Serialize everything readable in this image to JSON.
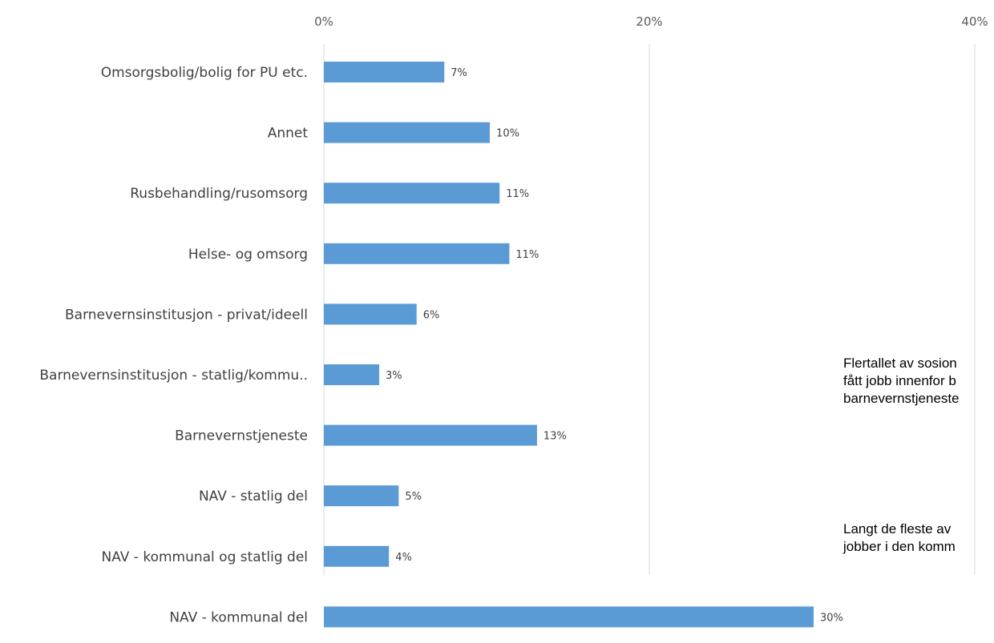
{
  "chart_data": {
    "type": "bar",
    "orientation": "horizontal",
    "categories": [
      "Omsorgsbolig/bolig for PU etc.",
      "Annet",
      "Rusbehandling/rusomsorg",
      "Helse- og omsorg",
      "Barnevernsinstitusjon - privat/ideell",
      "Barnevernsinstitusjon - statlig/kommu..",
      "Barnevernstjeneste",
      "NAV - statlig del",
      "NAV - kommunal og statlig del",
      "NAV - kommunal del"
    ],
    "values": [
      7.4,
      10.2,
      10.8,
      11.4,
      5.7,
      3.4,
      13.1,
      4.6,
      4.0,
      30.1
    ],
    "data_labels": [
      "7%",
      "10%",
      "11%",
      "11%",
      "6%",
      "3%",
      "13%",
      "5%",
      "4%",
      "30%"
    ],
    "x_ticks": [
      0,
      20,
      40
    ],
    "x_tick_labels": [
      "0%",
      "20%",
      "40%"
    ],
    "xlim": [
      0,
      40
    ],
    "x_axis_position": "top",
    "grid": true,
    "bar_color": "#5B9BD5",
    "title": "",
    "xlabel": "",
    "ylabel": ""
  },
  "annotations": [
    {
      "lines": [
        "Flertallet av sosion",
        "fått jobb innenfor b",
        "barnevernstjeneste"
      ]
    },
    {
      "lines": [
        "Langt de fleste av",
        "jobber i den komm"
      ]
    }
  ]
}
